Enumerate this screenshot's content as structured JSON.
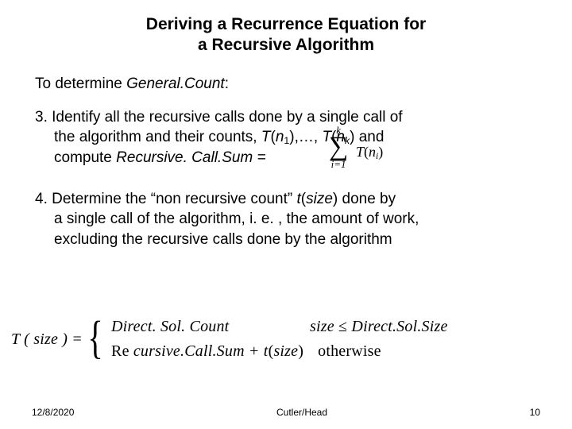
{
  "title_l1": "Deriving a Recurrence Equation for",
  "title_l2": "a Recursive Algorithm",
  "intro_a": "To determine ",
  "intro_b": "General.Count",
  "intro_c": ":",
  "p3_a": "3. Identify all the recursive calls done by a single call of",
  "p3_b": "the algorithm and their counts, ",
  "p3_c": "T",
  "p3_d": "(",
  "p3_e": "n",
  "p3_sub1": "1",
  "p3_f": "),…, ",
  "p3_g": "T",
  "p3_h": "(",
  "p3_i": "n",
  "p3_subk": "k",
  "p3_j": ") and",
  "p3_k": "compute  ",
  "p3_l": "Recursive. Call.Sum =",
  "sum_top": "k",
  "sum_sigma": "∑",
  "sum_bot": "i=1",
  "sum_arg_a": "T",
  "sum_arg_b": "(",
  "sum_arg_c": "n",
  "sum_arg_sub": "i",
  "sum_arg_d": ")",
  "p4_a": "4. Determine the “non recursive count”  ",
  "p4_b": "t",
  "p4_c": "(",
  "p4_d": "size",
  "p4_e": ") done by",
  "p4_f": "a single call of the algorithm, i. e. , the amount of work,",
  "p4_g": "excluding the recursive calls done by the algorithm",
  "eq_l": "T ( size ) = ",
  "case1_expr": "Direct. Sol. Count",
  "case1_cond_a": "size",
  "case1_cond_b": " ≤ ",
  "case1_cond_c": "Direct.Sol.Size",
  "case2_expr_a": "Re ",
  "case2_expr_b": "cursive.Call.Sum + t",
  "case2_expr_c": "(",
  "case2_expr_d": "size",
  "case2_expr_e": ")",
  "case2_cond": "otherwise",
  "footer_date": "12/8/2020",
  "footer_center": "Cutler/Head",
  "footer_page": "10"
}
